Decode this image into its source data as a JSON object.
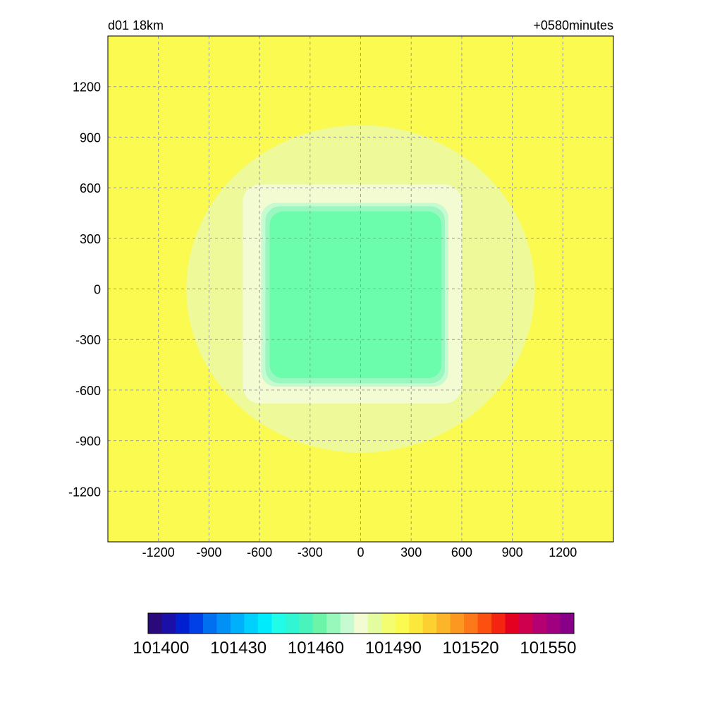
{
  "chart_data": {
    "type": "heatmap",
    "title_left": "d01 18km",
    "title_right": "+0580minutes",
    "xlabel": "",
    "ylabel": "",
    "xlim": [
      -1500,
      1500
    ],
    "ylim": [
      -1500,
      1500
    ],
    "xticks": [
      -1200,
      -900,
      -600,
      -300,
      0,
      300,
      600,
      900,
      1200
    ],
    "yticks": [
      1200,
      900,
      600,
      300,
      0,
      -300,
      -600,
      -900,
      -1200
    ],
    "grid": true,
    "background_level": 101485,
    "fields": [
      {
        "shape": "ring",
        "level": 101490,
        "center": [
          0,
          0
        ],
        "outer_radius": 1050,
        "inner_half_width": 700,
        "color": "#eefa9a"
      },
      {
        "shape": "box",
        "level": 101485,
        "x": [
          -700,
          600
        ],
        "y": [
          -680,
          620
        ],
        "color": "#f2fbd2"
      },
      {
        "shape": "box",
        "level": 101480,
        "x": [
          -590,
          520
        ],
        "y": [
          -580,
          510
        ],
        "color": "#c6fad0"
      },
      {
        "shape": "box",
        "level": 101475,
        "x": [
          -565,
          500
        ],
        "y": [
          -560,
          490
        ],
        "color": "#9bf7c0"
      },
      {
        "shape": "box",
        "level": 101470,
        "x": [
          -540,
          480
        ],
        "y": [
          -530,
          460
        ],
        "color": "#6bfcac"
      }
    ],
    "colorbar": {
      "min": 101395,
      "max": 101560,
      "step": 5,
      "tick_labels": [
        "101400",
        "101430",
        "101460",
        "101490",
        "101520",
        "101550"
      ],
      "tick_values": [
        101400,
        101430,
        101460,
        101490,
        101520,
        101550
      ],
      "colors": [
        "#2a0a7a",
        "#1a10a8",
        "#0020d0",
        "#0040e6",
        "#0070f0",
        "#0090f6",
        "#00b0fa",
        "#00d0fc",
        "#00ecfc",
        "#20fce8",
        "#30f6d4",
        "#48f4bc",
        "#6cf4a8",
        "#98f8bc",
        "#c6fad0",
        "#f2fbd2",
        "#e4fca0",
        "#f4fc70",
        "#fafa50",
        "#fce83c",
        "#fcd030",
        "#fcb428",
        "#fc9820",
        "#fc7818",
        "#fc5010",
        "#f42410",
        "#e40020",
        "#d00050",
        "#b40070",
        "#a00080",
        "#880088"
      ]
    }
  }
}
